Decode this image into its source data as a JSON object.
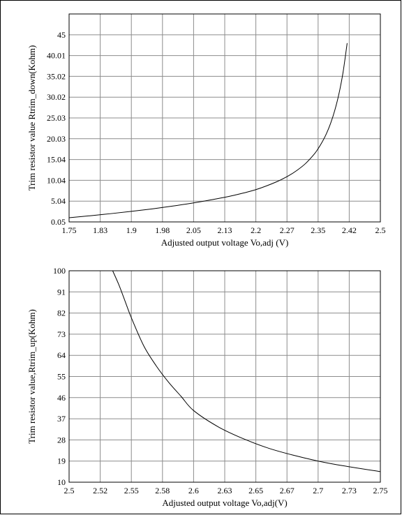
{
  "chart_data": [
    {
      "type": "line",
      "title": "",
      "xlabel": "Adjusted output voltage Vo,adj (V)",
      "ylabel": "Trim resistor value Rtrim_down(Kohm)",
      "xlim": [
        1.75,
        2.5
      ],
      "ylim": [
        0.05,
        50
      ],
      "x_ticks": [
        "1.75",
        "1.83",
        "1.9",
        "1.98",
        "2.05",
        "2.13",
        "2.2",
        "2.27",
        "2.35",
        "2.42",
        "2.5"
      ],
      "y_ticks": [
        "0.05",
        "5.04",
        "10.04",
        "15.04",
        "20.03",
        "25.03",
        "30.02",
        "35.02",
        "40.01",
        "45"
      ],
      "grid": true,
      "series": [
        {
          "x": [
            1.75,
            1.8,
            1.85,
            1.9,
            1.95,
            2.0,
            2.05,
            2.1,
            2.15,
            2.2,
            2.25,
            2.28,
            2.3,
            2.32,
            2.34,
            2.35,
            2.36,
            2.37,
            2.38,
            2.39,
            2.4,
            2.41,
            2.42
          ],
          "values": [
            1.05,
            1.52,
            2.03,
            2.58,
            3.18,
            3.86,
            4.61,
            5.49,
            6.51,
            7.8,
            9.69,
            11.21,
            12.5,
            14.1,
            16.25,
            17.64,
            19.29,
            21.25,
            23.7,
            26.79,
            30.72,
            35.9,
            43.0
          ]
        }
      ]
    },
    {
      "type": "line",
      "title": "",
      "xlabel": "Adjusted output voltage Vo,adj(V)",
      "ylabel": "Trim resistor value,Rtrim_up(Kohm)",
      "xlim": [
        2.5,
        2.75
      ],
      "ylim": [
        10,
        100
      ],
      "x_ticks": [
        "2.5",
        "2.52",
        "2.55",
        "2.58",
        "2.6",
        "2.63",
        "2.65",
        "2.67",
        "2.7",
        "2.73",
        "2.75"
      ],
      "y_ticks": [
        "10",
        "19",
        "28",
        "37",
        "46",
        "55",
        "64",
        "73",
        "82",
        "91",
        "100"
      ],
      "grid": true,
      "series": [
        {
          "x": [
            2.535,
            2.54,
            2.545,
            2.55,
            2.56,
            2.57,
            2.58,
            2.59,
            2.6,
            2.62,
            2.64,
            2.66,
            2.68,
            2.7,
            2.72,
            2.75
          ],
          "values": [
            100,
            94,
            87,
            80,
            68,
            59.5,
            52.5,
            46.5,
            40.5,
            33.5,
            28.5,
            24.5,
            21.5,
            19,
            17,
            14.5
          ]
        }
      ]
    }
  ]
}
